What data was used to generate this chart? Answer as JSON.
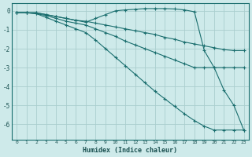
{
  "xlabel": "Humidex (Indice chaleur)",
  "background_color": "#ceeaea",
  "grid_color": "#aacece",
  "line_color": "#1a6e6e",
  "xlim": [
    -0.5,
    23.5
  ],
  "ylim": [
    -6.8,
    0.4
  ],
  "yticks": [
    0,
    -1,
    -2,
    -3,
    -4,
    -5,
    -6
  ],
  "xticks": [
    0,
    1,
    2,
    3,
    4,
    5,
    6,
    7,
    8,
    9,
    10,
    11,
    12,
    13,
    14,
    15,
    16,
    17,
    18,
    19,
    20,
    21,
    22,
    23
  ],
  "lines": [
    {
      "x": [
        0,
        1,
        2,
        3,
        4,
        5,
        6,
        7,
        8,
        9,
        10,
        11,
        12,
        13,
        14,
        15,
        16,
        17,
        18,
        19,
        20,
        21,
        22,
        23
      ],
      "y": [
        -0.1,
        -0.1,
        -0.1,
        -0.2,
        -0.3,
        -0.4,
        -0.5,
        -0.6,
        -0.4,
        -0.2,
        0.0,
        0.05,
        0.08,
        0.12,
        0.12,
        0.12,
        0.1,
        0.05,
        -0.05,
        -2.1,
        -3.0,
        -4.2,
        -5.0,
        -6.3
      ]
    },
    {
      "x": [
        0,
        1,
        2,
        3,
        4,
        5,
        6,
        7,
        8,
        9,
        10,
        11,
        12,
        13,
        14,
        15,
        16,
        17,
        18,
        19,
        20,
        21,
        22,
        23
      ],
      "y": [
        -0.1,
        -0.1,
        -0.1,
        -0.2,
        -0.3,
        -0.4,
        -0.5,
        -0.55,
        -0.65,
        -0.75,
        -0.85,
        -0.95,
        -1.05,
        -1.15,
        -1.25,
        -1.4,
        -1.5,
        -1.65,
        -1.75,
        -1.85,
        -1.95,
        -2.05,
        -2.1,
        -2.1
      ]
    },
    {
      "x": [
        0,
        1,
        2,
        3,
        4,
        5,
        6,
        7,
        8,
        9,
        10,
        11,
        12,
        13,
        14,
        15,
        16,
        17,
        18,
        19,
        20,
        21,
        22,
        23
      ],
      "y": [
        -0.1,
        -0.1,
        -0.15,
        -0.25,
        -0.4,
        -0.55,
        -0.65,
        -0.75,
        -0.95,
        -1.15,
        -1.35,
        -1.6,
        -1.8,
        -2.0,
        -2.2,
        -2.4,
        -2.6,
        -2.8,
        -3.0,
        -3.0,
        -3.0,
        -3.0,
        -3.0,
        -3.0
      ]
    },
    {
      "x": [
        0,
        1,
        2,
        3,
        4,
        5,
        6,
        7,
        8,
        9,
        10,
        11,
        12,
        13,
        14,
        15,
        16,
        17,
        18,
        19,
        20,
        21,
        22,
        23
      ],
      "y": [
        -0.1,
        -0.1,
        -0.15,
        -0.35,
        -0.55,
        -0.75,
        -0.95,
        -1.15,
        -1.55,
        -2.0,
        -2.45,
        -2.9,
        -3.35,
        -3.8,
        -4.25,
        -4.65,
        -5.05,
        -5.45,
        -5.8,
        -6.1,
        -6.3,
        -6.3,
        -6.3,
        -6.3
      ]
    }
  ]
}
